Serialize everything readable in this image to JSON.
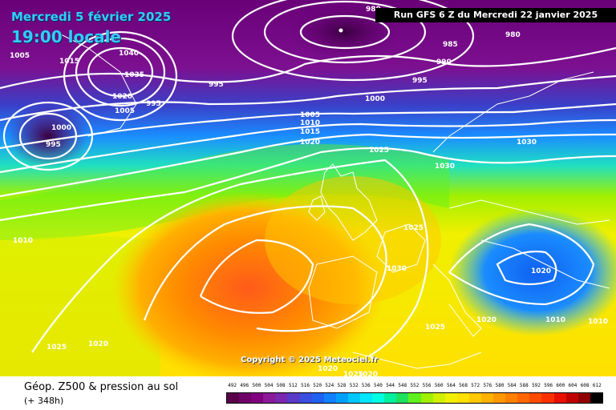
{
  "header": {
    "date": "Mercredi 5 février 2025",
    "time": "19:00 locale",
    "run": "Run GFS 6 Z du Mercredi 22 janvier 2025"
  },
  "copyright": "Copyright © 2025 Meteociel.fr",
  "legend": {
    "title": "Géop. Z500 & pression au sol",
    "subtitle": "(+ 348h)",
    "scale": [
      "492",
      "496",
      "500",
      "504",
      "508",
      "512",
      "516",
      "520",
      "524",
      "528",
      "532",
      "536",
      "540",
      "544",
      "548",
      "552",
      "556",
      "560",
      "564",
      "568",
      "572",
      "576",
      "580",
      "584",
      "588",
      "592",
      "596",
      "600",
      "604",
      "608",
      "612"
    ],
    "colors": [
      "#5a004a",
      "#6e0068",
      "#800080",
      "#8a1a9a",
      "#7a28b0",
      "#5a3ac8",
      "#3a4ee0",
      "#2060f0",
      "#1080ff",
      "#00a0ff",
      "#00c8ff",
      "#00e6ff",
      "#00ffe0",
      "#00f0a0",
      "#20e060",
      "#60f020",
      "#a0f000",
      "#d0f000",
      "#f0f000",
      "#ffe000",
      "#ffc800",
      "#ffb000",
      "#ff9800",
      "#ff8000",
      "#ff6600",
      "#ff4c00",
      "#ff3000",
      "#e81000",
      "#c00000",
      "#900000",
      "#000000"
    ]
  },
  "isobar_labels": [
    "980",
    "985",
    "990",
    "995",
    "1000",
    "1005",
    "1010",
    "1015",
    "1020",
    "1025",
    "1030",
    "1035",
    "1040",
    "1005",
    "1015",
    "995",
    "1000",
    "995",
    "1005",
    "1020",
    "1025",
    "1030",
    "1025",
    "1030",
    "1020",
    "1025",
    "1020",
    "1010",
    "1010",
    "1020",
    "1025",
    "1020",
    "1020",
    "1010",
    "980",
    "995",
    "1000"
  ],
  "colors": {
    "accent": "#33ccff",
    "run_box": "#000000"
  }
}
